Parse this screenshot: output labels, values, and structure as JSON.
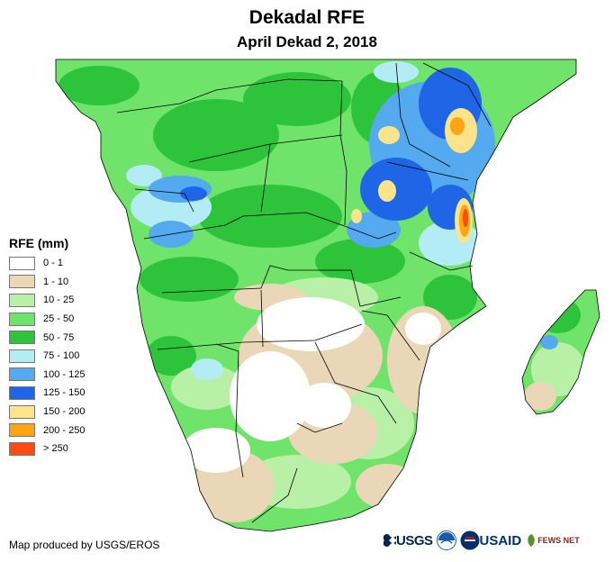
{
  "title": "Dekadal RFE",
  "subtitle": "April Dekad 2, 2018",
  "legend": {
    "title": "RFE (mm)",
    "items": [
      {
        "label": "0 - 1",
        "color": "#ffffff"
      },
      {
        "label": "1 - 10",
        "color": "#ead7b8"
      },
      {
        "label": "10 - 25",
        "color": "#b9f0a8"
      },
      {
        "label": "25 - 50",
        "color": "#6fe36a"
      },
      {
        "label": "50 - 75",
        "color": "#2dc43c"
      },
      {
        "label": "75 - 100",
        "color": "#b3ecf5"
      },
      {
        "label": "100 - 125",
        "color": "#55a9ee"
      },
      {
        "label": "125 - 150",
        "color": "#1e66e6"
      },
      {
        "label": "150 - 200",
        "color": "#fde38a"
      },
      {
        "label": "200 - 250",
        "color": "#ffa514"
      },
      {
        "label": "> 250",
        "color": "#ff4a14"
      }
    ]
  },
  "credit": "Map produced by USGS/EROS",
  "logos": {
    "usgs": "USGS",
    "noaa_icon": "noaa-emblem-icon",
    "usaid": "USAID",
    "fews": "FEWS NET"
  }
}
